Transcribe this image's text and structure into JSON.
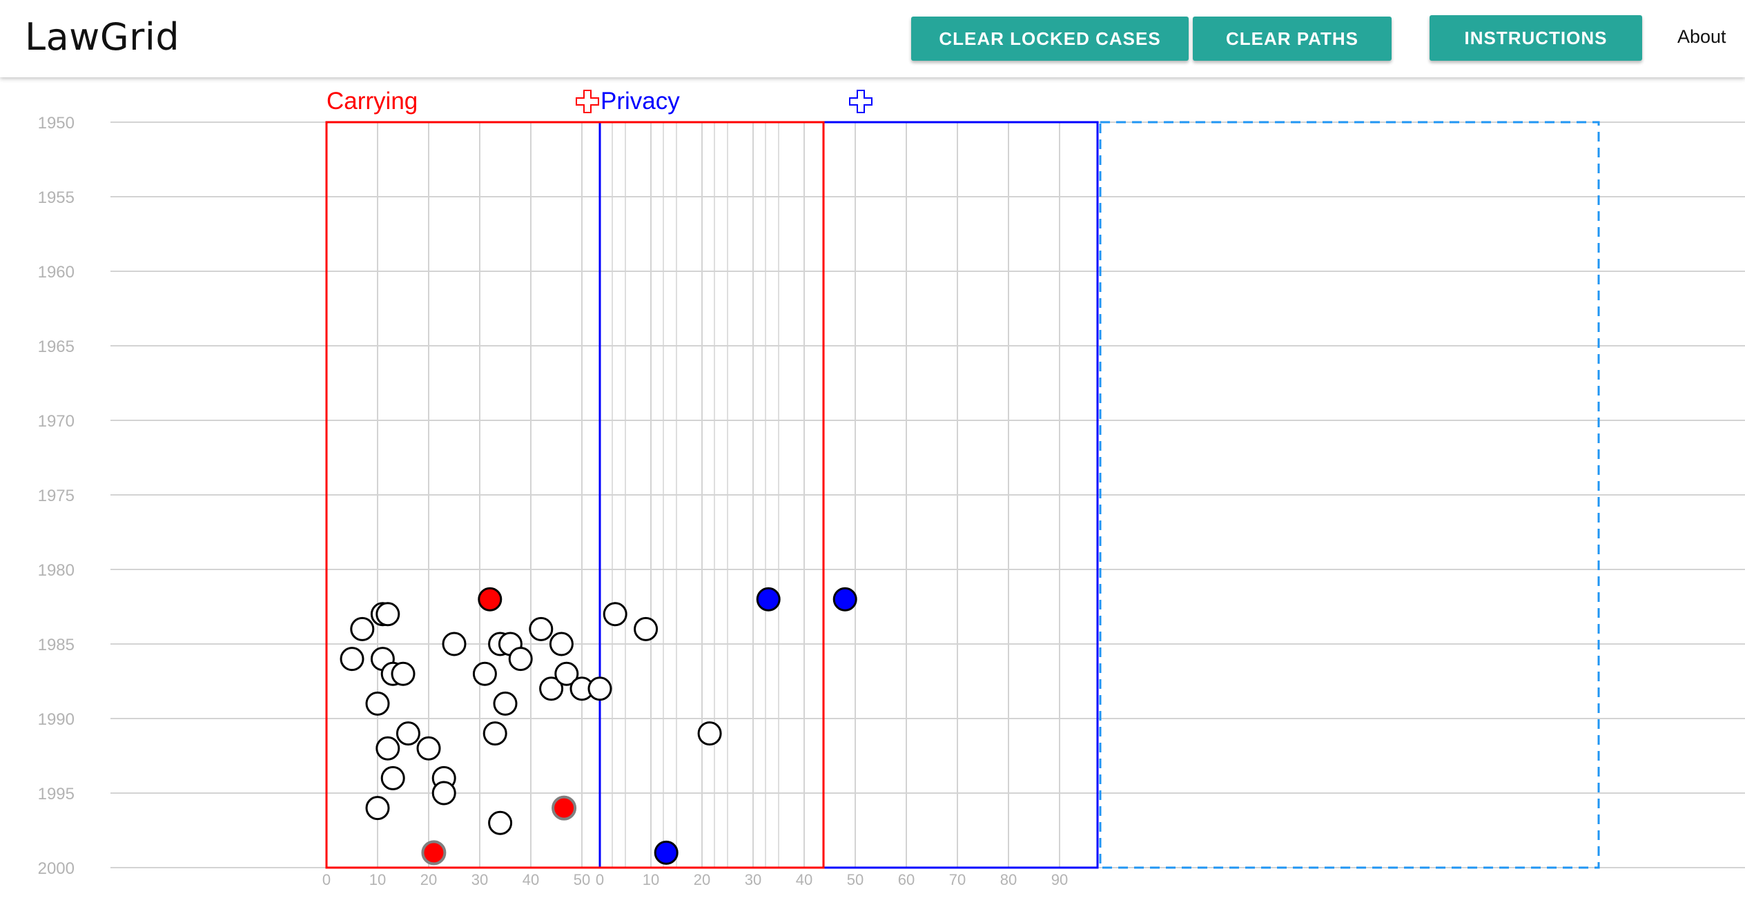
{
  "app": {
    "title": "LawGrid"
  },
  "toolbar": {
    "clear_locked_label": "CLEAR LOCKED CASES",
    "clear_paths_label": "CLEAR PATHS",
    "instructions_label": "INSTRUCTIONS",
    "about_label": "About"
  },
  "colors": {
    "accent": "#26a69a",
    "carrying": "#ff0000",
    "privacy": "#0000ff",
    "drop_zone": "#2196f3",
    "grid": "#d3d3d3",
    "axis_label": "#b3b3b3"
  },
  "icons": {
    "carrying_add": "plus-outline-icon",
    "privacy_add": "plus-outline-icon"
  },
  "chart_data": {
    "type": "scatter",
    "y_ticks": [
      "1950",
      "1955",
      "1960",
      "1965",
      "1970",
      "1975",
      "1980",
      "1985",
      "1990",
      "1995",
      "2000"
    ],
    "ylim": [
      1950,
      2000
    ],
    "grid": true,
    "columns": [
      {
        "name": "Carrying",
        "color": "#ff0000",
        "x_ticks": [
          "0",
          "10",
          "20",
          "30",
          "40",
          "50"
        ],
        "points": [
          {
            "x": 5,
            "y": 1986,
            "fill": "white"
          },
          {
            "x": 7,
            "y": 1984,
            "fill": "white"
          },
          {
            "x": 10,
            "y": 1989,
            "fill": "white"
          },
          {
            "x": 10,
            "y": 1996,
            "fill": "white"
          },
          {
            "x": 11,
            "y": 1983,
            "fill": "white"
          },
          {
            "x": 11,
            "y": 1986,
            "fill": "white"
          },
          {
            "x": 12,
            "y": 1983,
            "fill": "white"
          },
          {
            "x": 12,
            "y": 1992,
            "fill": "white"
          },
          {
            "x": 13,
            "y": 1987,
            "fill": "white"
          },
          {
            "x": 13,
            "y": 1994,
            "fill": "white"
          },
          {
            "x": 15,
            "y": 1987,
            "fill": "white"
          },
          {
            "x": 16,
            "y": 1991,
            "fill": "white"
          },
          {
            "x": 20,
            "y": 1992,
            "fill": "white"
          },
          {
            "x": 21,
            "y": 1999,
            "fill": "red"
          },
          {
            "x": 23,
            "y": 1994,
            "fill": "white"
          },
          {
            "x": 23,
            "y": 1995,
            "fill": "white"
          },
          {
            "x": 25,
            "y": 1985,
            "fill": "white"
          },
          {
            "x": 31,
            "y": 1987,
            "fill": "white"
          },
          {
            "x": 32,
            "y": 1982,
            "fill": "red"
          },
          {
            "x": 33,
            "y": 1991,
            "fill": "white"
          },
          {
            "x": 34,
            "y": 1985,
            "fill": "white"
          },
          {
            "x": 34,
            "y": 1997,
            "fill": "white"
          },
          {
            "x": 35,
            "y": 1989,
            "fill": "white"
          },
          {
            "x": 36,
            "y": 1985,
            "fill": "white"
          },
          {
            "x": 38,
            "y": 1986,
            "fill": "white"
          },
          {
            "x": 42,
            "y": 1984,
            "fill": "white"
          },
          {
            "x": 44,
            "y": 1988,
            "fill": "white"
          },
          {
            "x": 46,
            "y": 1985,
            "fill": "white"
          },
          {
            "x": 46.5,
            "y": 1996,
            "fill": "red"
          },
          {
            "x": 47,
            "y": 1987,
            "fill": "white"
          },
          {
            "x": 50,
            "y": 1988,
            "fill": "white"
          }
        ]
      },
      {
        "name": "Privacy",
        "color": "#0000ff",
        "x_ticks": [
          "0",
          "10",
          "20",
          "30",
          "40",
          "50",
          "60",
          "70",
          "80",
          "90"
        ],
        "points": [
          {
            "x": 0,
            "y": 1988,
            "fill": "white"
          },
          {
            "x": 3,
            "y": 1983,
            "fill": "white"
          },
          {
            "x": 9,
            "y": 1984,
            "fill": "white"
          },
          {
            "x": 13,
            "y": 1999,
            "fill": "blue"
          },
          {
            "x": 21.5,
            "y": 1991,
            "fill": "white"
          },
          {
            "x": 33,
            "y": 1982,
            "fill": "blue"
          },
          {
            "x": 48,
            "y": 1982,
            "fill": "blue"
          }
        ]
      }
    ]
  }
}
